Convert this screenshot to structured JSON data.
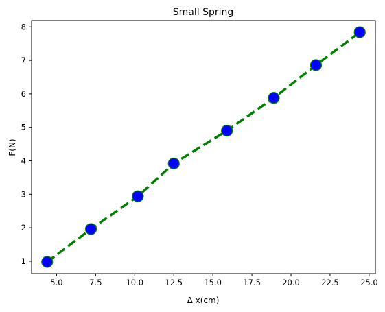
{
  "chart_data": {
    "type": "line",
    "title": "Small Spring",
    "xlabel": "Δ x(cm)",
    "ylabel": "F(N)",
    "x": [
      4.4,
      7.2,
      10.2,
      12.5,
      15.9,
      18.9,
      21.6,
      24.4
    ],
    "series": [
      {
        "values": [
          0.98,
          1.96,
          2.94,
          3.92,
          4.9,
          5.88,
          6.86,
          7.84
        ]
      }
    ],
    "xlim": [
      3.4,
      25.4
    ],
    "ylim": [
      0.63,
      8.19
    ],
    "xticks": [
      5.0,
      7.5,
      10.0,
      12.5,
      15.0,
      17.5,
      20.0,
      22.5,
      25.0
    ],
    "xtick_labels": [
      "5.0",
      "7.5",
      "10.0",
      "12.5",
      "15.0",
      "17.5",
      "20.0",
      "22.5",
      "25.0"
    ],
    "yticks": [
      1,
      2,
      3,
      4,
      5,
      6,
      7,
      8
    ],
    "ytick_labels": [
      "1",
      "2",
      "3",
      "4",
      "5",
      "6",
      "7",
      "8"
    ],
    "grid": false,
    "line_color": "#008000",
    "line_style": "dashed",
    "marker_face_color": "#0000ff",
    "marker_edge_color": "#008000"
  }
}
